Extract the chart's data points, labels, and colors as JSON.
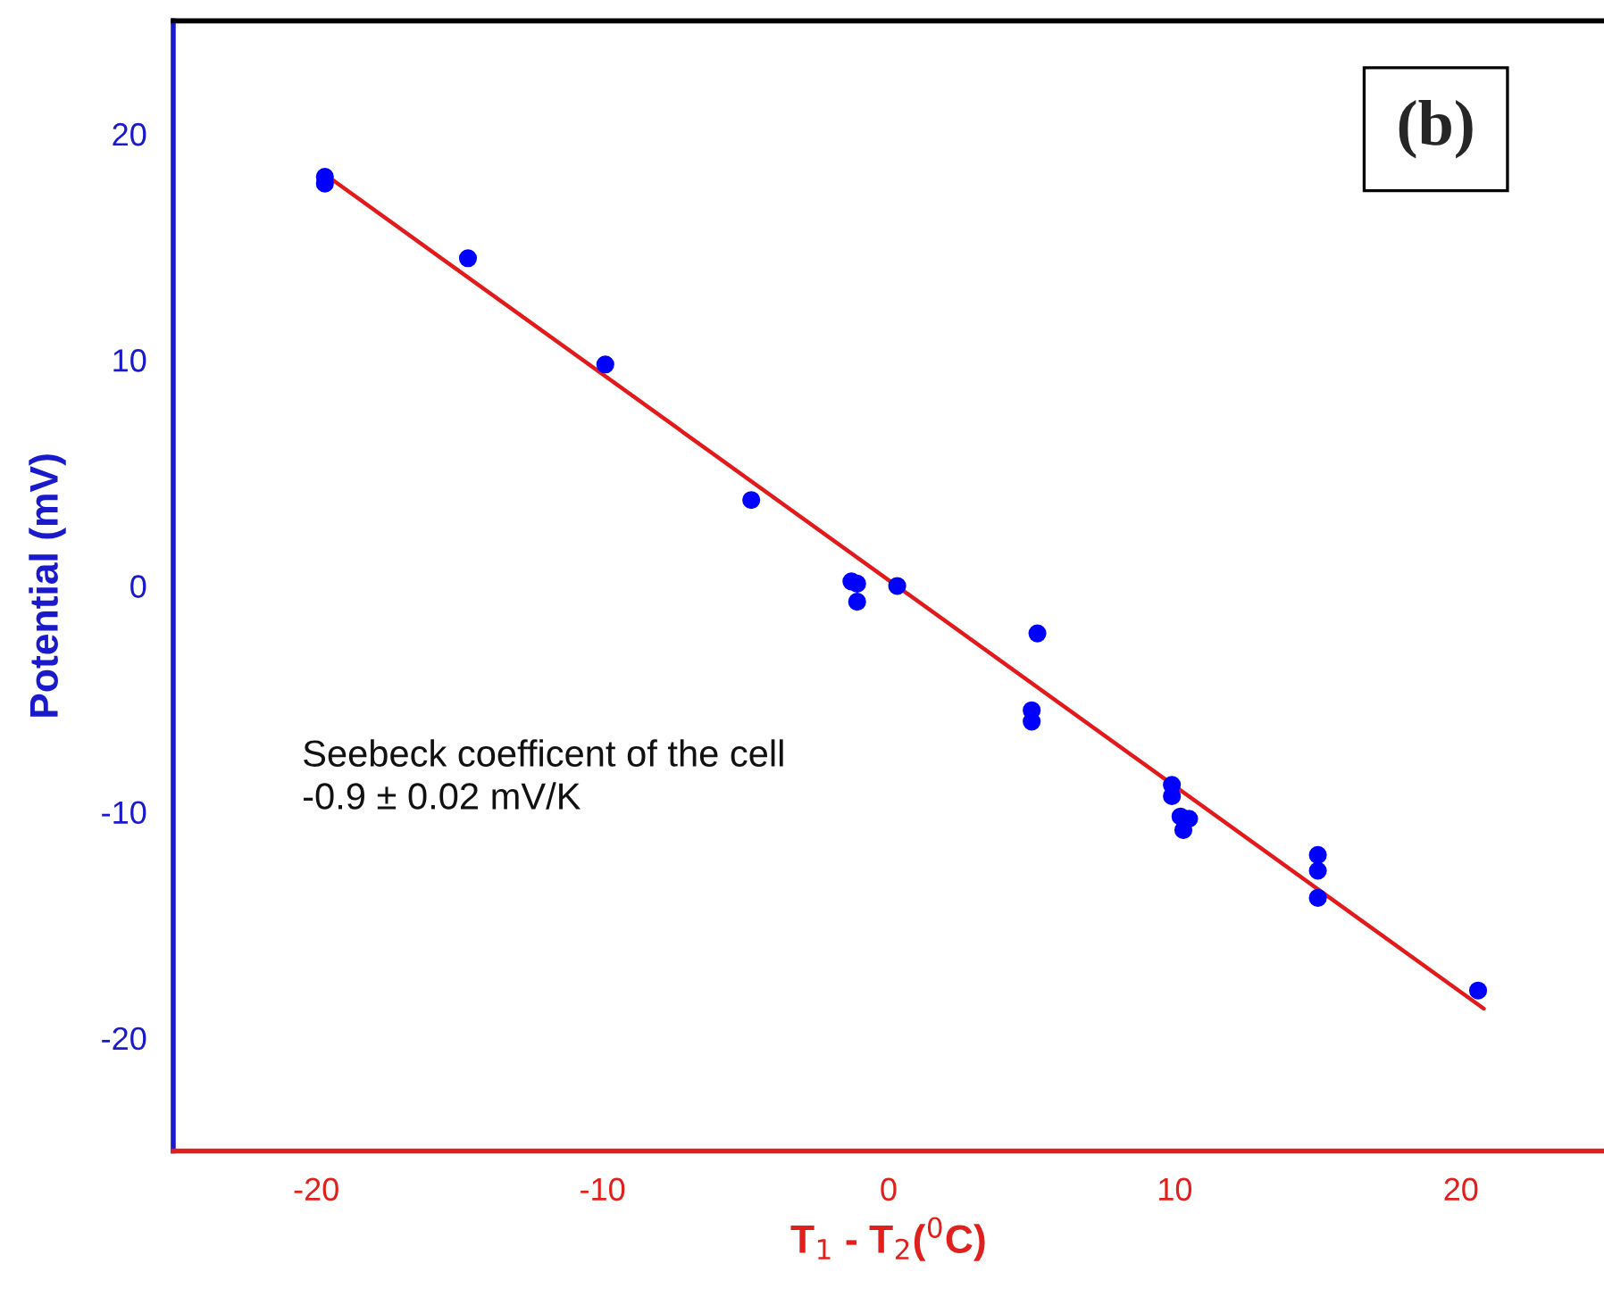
{
  "chart_data": {
    "type": "scatter",
    "title": "(b)",
    "xlabel": "T$_{1}$ - T$_{2}$($^{0}$C)",
    "ylabel": "Potential (mV)",
    "annotations": [
      "Seebeck coefficent of the cell\n-0.9 ± 0.02 mV/K"
    ],
    "xlim": [
      -25,
      25
    ],
    "xticks": [
      -20,
      -10,
      0,
      10,
      20
    ],
    "ylim": [
      -25,
      25
    ],
    "yticks": [
      -20,
      -10,
      0,
      10,
      20
    ],
    "grid": false,
    "legend": false,
    "series": [
      {
        "marker": "circle",
        "color": "#0000ff",
        "x": [
          -19.7,
          -19.7,
          -14.7,
          -9.9,
          -4.8,
          -1.3,
          -1.1,
          -1.1,
          0.3,
          5.2,
          5.0,
          5.0,
          9.9,
          9.9,
          10.2,
          10.5,
          10.3,
          15.0,
          15.0,
          15.0,
          20.6
        ],
        "values": [
          18.1,
          17.8,
          14.5,
          9.8,
          3.8,
          0.2,
          0.1,
          -0.7,
          0.0,
          -2.1,
          -5.5,
          -6.0,
          -8.8,
          -9.3,
          -10.2,
          -10.3,
          -10.8,
          -11.9,
          -12.6,
          -13.8,
          -17.9
        ]
      },
      {
        "type": "line",
        "color": "#e31a1c",
        "x": [
          -19.8,
          20.8
        ],
        "values": [
          18.3,
          -18.7
        ]
      }
    ]
  }
}
